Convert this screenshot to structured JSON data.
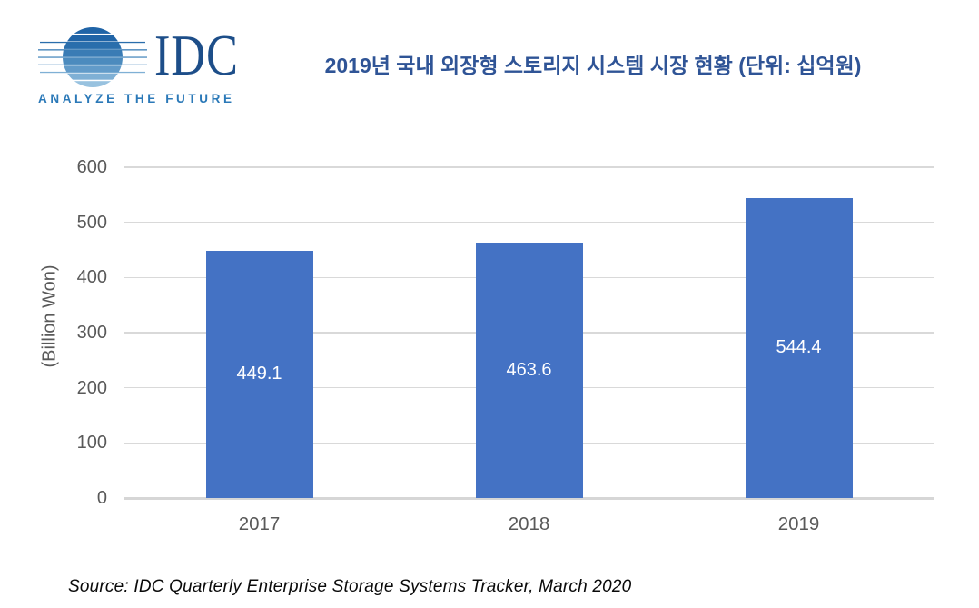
{
  "logo": {
    "text": "IDC",
    "tagline": "ANALYZE THE FUTURE"
  },
  "header": {
    "title": "2019년 국내 외장형 스토리지 시스템 시장 현황 (단위: 십억원)"
  },
  "source": "Source: IDC Quarterly Enterprise Storage Systems Tracker, March 2020",
  "chart_data": {
    "type": "bar",
    "categories": [
      "2017",
      "2018",
      "2019"
    ],
    "values": [
      449.1,
      463.6,
      544.4
    ],
    "data_labels": [
      "449.1",
      "463.6",
      "544.4"
    ],
    "title": "2019년 국내 외장형 스토리지 시스템 시장 현황 (단위: 십억원)",
    "xlabel": "",
    "ylabel": "(Billion Won)",
    "ylim": [
      0,
      600
    ],
    "yticks": [
      0,
      100,
      200,
      300,
      400,
      500,
      600
    ],
    "grid": true,
    "legend": false,
    "data_label_position": "inside-center"
  },
  "colors": {
    "bar": "#4472C4",
    "title_text": "#2F5496",
    "gridline": "#D9D9D9",
    "axis_text": "#595959",
    "data_label_text": "#FFFFFF",
    "logo_idc": "#1D4E89",
    "logo_tagline": "#2B79B8"
  }
}
